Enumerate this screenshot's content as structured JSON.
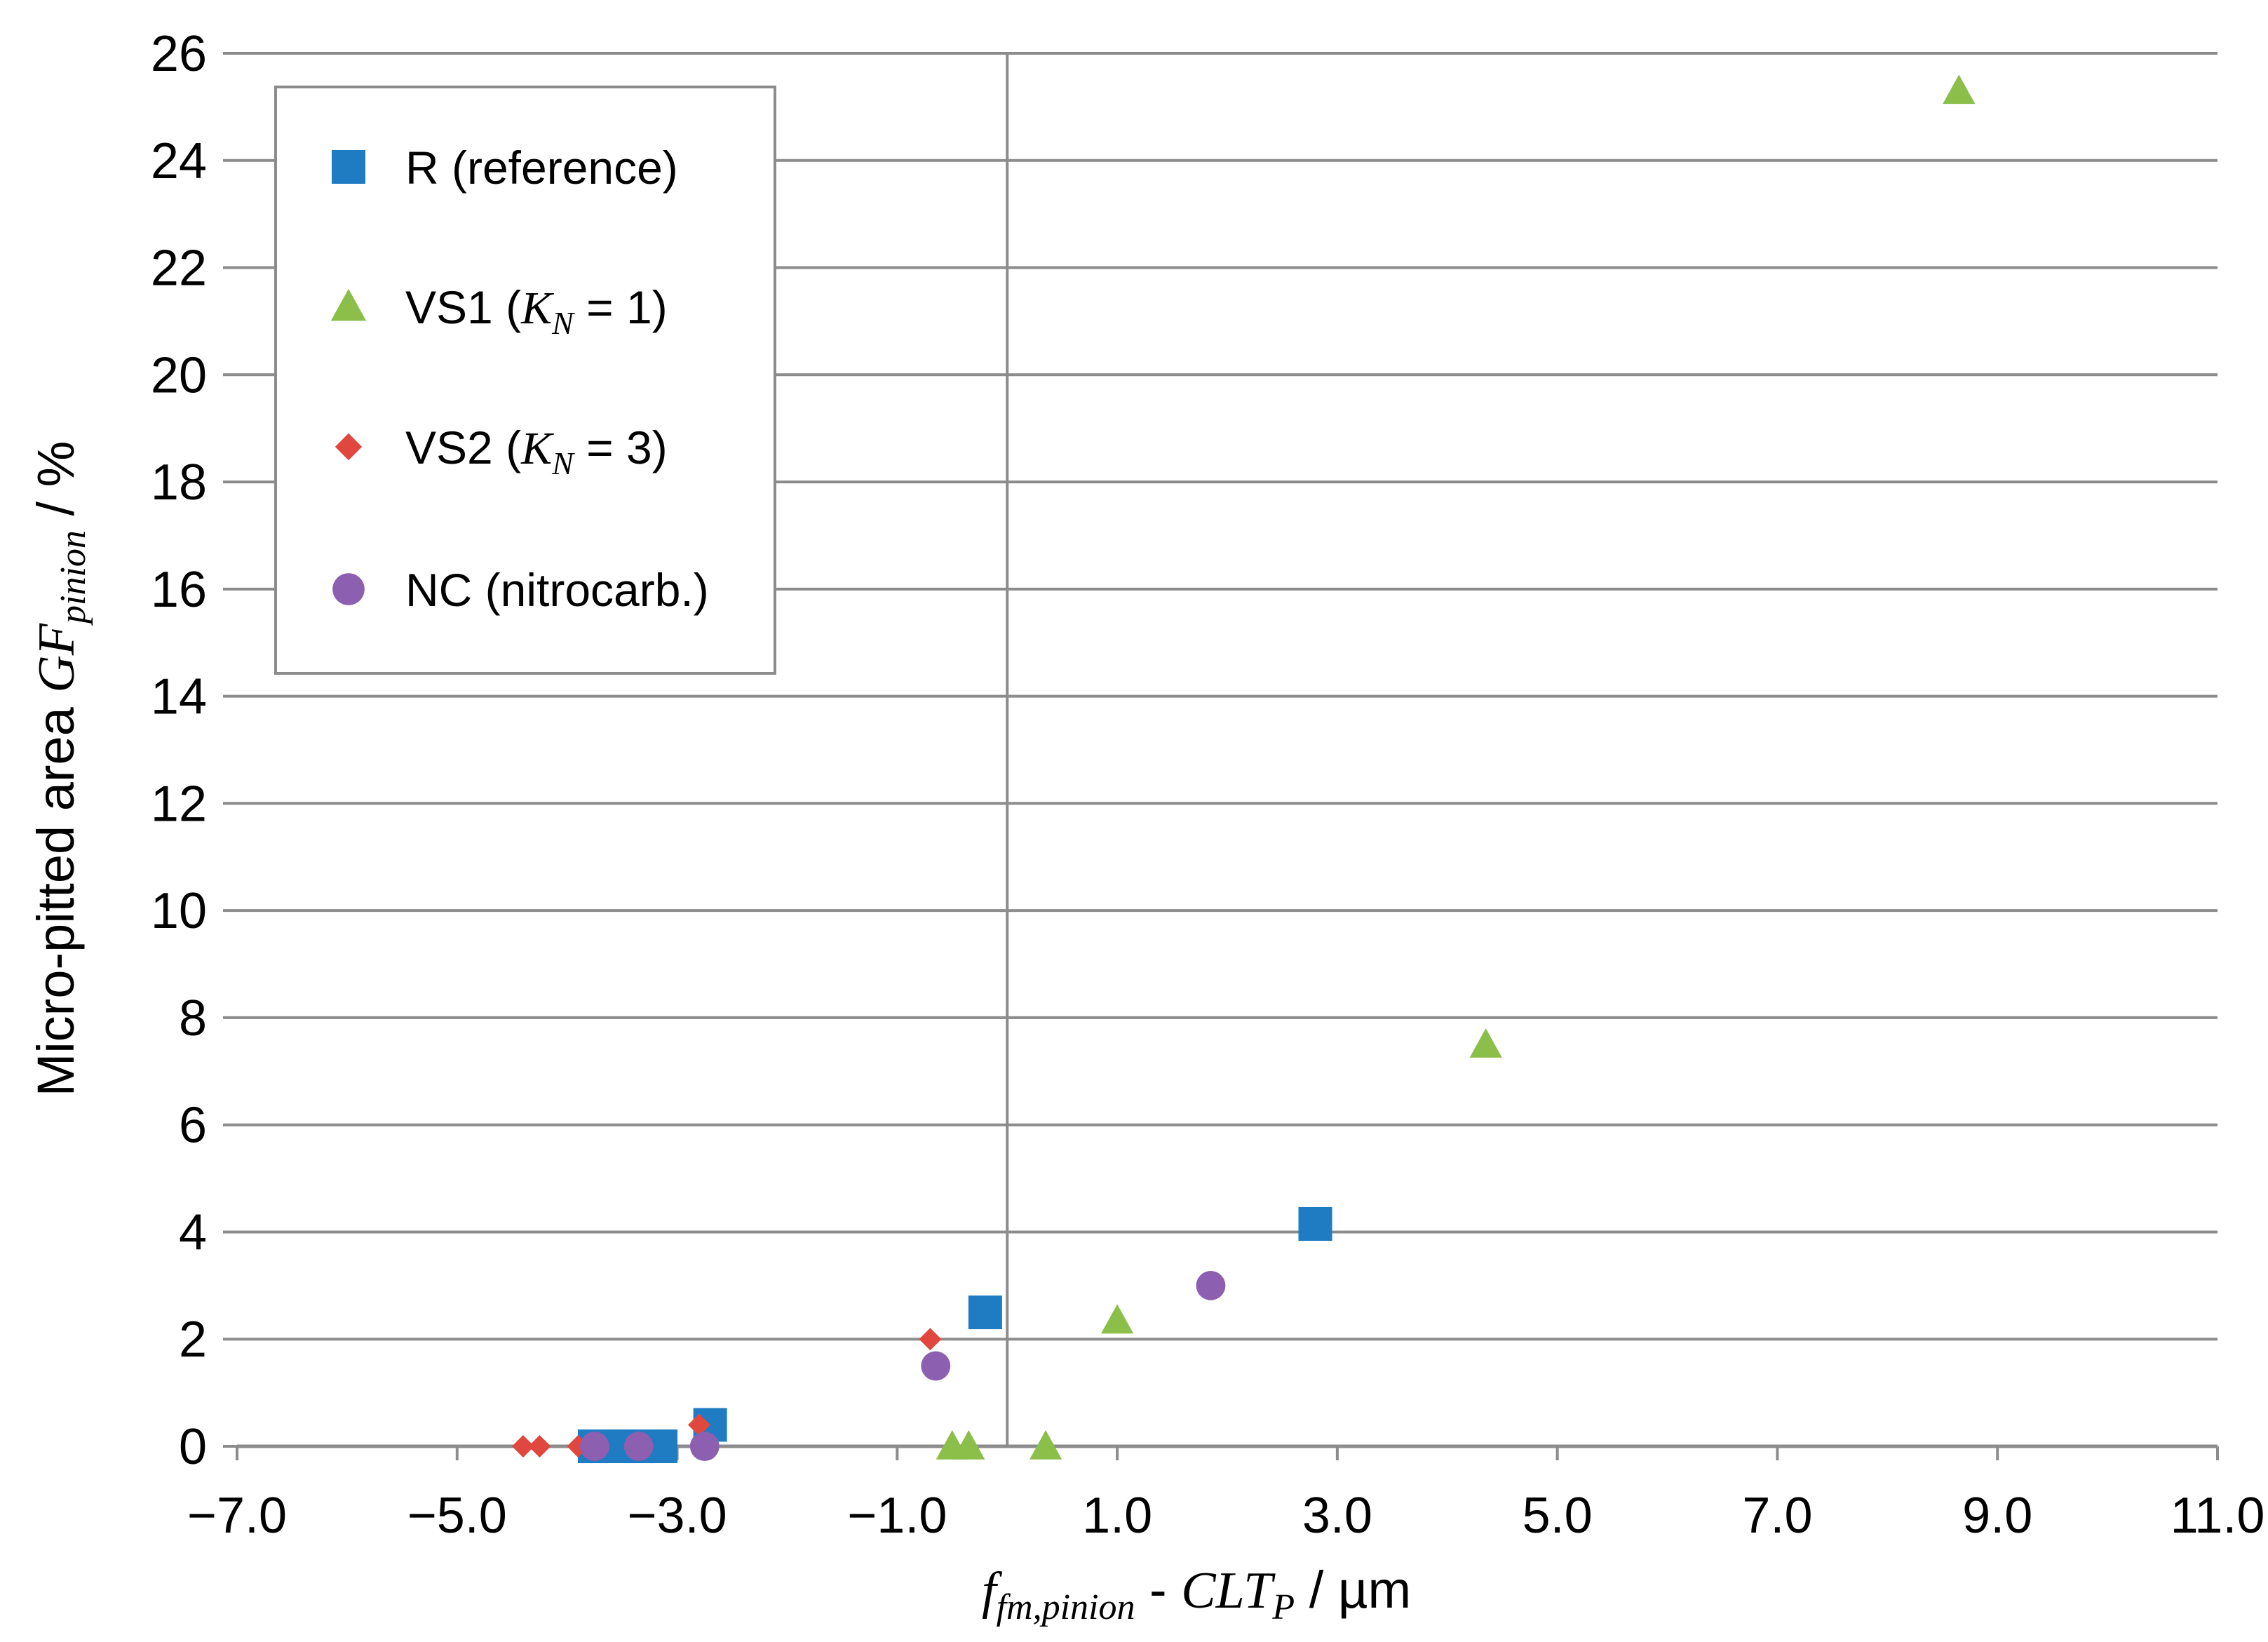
{
  "chart_data": {
    "type": "scatter",
    "title": "",
    "xlabel": {
      "parts": [
        {
          "text": "f",
          "style": "italic"
        },
        {
          "text": "fm,pinion",
          "style": "italic-sub"
        },
        {
          "text": " - ",
          "style": "normal"
        },
        {
          "text": "CLT",
          "style": "italic"
        },
        {
          "text": "P",
          "style": "italic-sub"
        },
        {
          "text": " / µm",
          "style": "normal"
        }
      ]
    },
    "ylabel": {
      "parts": [
        {
          "text": "Micro-pitted area ",
          "style": "normal"
        },
        {
          "text": "GF",
          "style": "italic"
        },
        {
          "text": "pinion",
          "style": "italic-sub"
        },
        {
          "text": " / %",
          "style": "normal"
        }
      ]
    },
    "xlim": [
      -7.0,
      11.0
    ],
    "ylim": [
      0,
      26
    ],
    "xticks": [
      "−7.0",
      "−5.0",
      "−3.0",
      "−1.0",
      "1.0",
      "3.0",
      "5.0",
      "7.0",
      "9.0",
      "11.0"
    ],
    "xtick_values": [
      -7,
      -5,
      -3,
      -1,
      1,
      3,
      5,
      7,
      9,
      11
    ],
    "yticks": [
      "0",
      "2",
      "4",
      "6",
      "8",
      "10",
      "12",
      "14",
      "16",
      "18",
      "20",
      "22",
      "24",
      "26"
    ],
    "ytick_values": [
      0,
      2,
      4,
      6,
      8,
      10,
      12,
      14,
      16,
      18,
      20,
      22,
      24,
      26
    ],
    "grid": "horizontal",
    "vertical_line_x": 0,
    "legend_position": "top-left",
    "series": [
      {
        "name": "R (reference)",
        "legend_parts": [
          {
            "text": "R (reference)",
            "style": "normal"
          }
        ],
        "marker": "square",
        "color": "#1f7cc2",
        "points": [
          [
            -3.75,
            0.0
          ],
          [
            -3.6,
            0.0
          ],
          [
            -3.45,
            0.0
          ],
          [
            -3.15,
            0.0
          ],
          [
            -2.7,
            0.4
          ],
          [
            -0.2,
            2.5
          ],
          [
            2.8,
            4.15
          ]
        ]
      },
      {
        "name": "VS1 (K_N = 1)",
        "legend_parts": [
          {
            "text": "VS1 (",
            "style": "normal"
          },
          {
            "text": "K",
            "style": "italic"
          },
          {
            "text": "N",
            "style": "italic-sub"
          },
          {
            "text": " = 1)",
            "style": "normal"
          }
        ],
        "marker": "triangle",
        "color": "#8cbf4a",
        "points": [
          [
            -0.5,
            0.0
          ],
          [
            -0.35,
            0.0
          ],
          [
            0.35,
            0.0
          ],
          [
            1.0,
            2.35
          ],
          [
            4.35,
            7.5
          ],
          [
            8.65,
            25.3
          ]
        ]
      },
      {
        "name": "VS2 (K_N = 3)",
        "legend_parts": [
          {
            "text": "VS2 (",
            "style": "normal"
          },
          {
            "text": "K",
            "style": "italic"
          },
          {
            "text": "N",
            "style": "italic-sub"
          },
          {
            "text": " = 3)",
            "style": "normal"
          }
        ],
        "marker": "diamond",
        "color": "#e0473e",
        "points": [
          [
            -4.4,
            0.0
          ],
          [
            -4.25,
            0.0
          ],
          [
            -3.9,
            0.0
          ],
          [
            -2.8,
            0.4
          ],
          [
            -0.7,
            2.0
          ]
        ]
      },
      {
        "name": "NC (nitrocarb.)",
        "legend_parts": [
          {
            "text": "NC (nitrocarb.)",
            "style": "normal"
          }
        ],
        "marker": "circle",
        "color": "#8c5fb0",
        "points": [
          [
            -3.75,
            0.0
          ],
          [
            -3.35,
            0.0
          ],
          [
            -2.75,
            0.0
          ],
          [
            -0.65,
            1.5
          ],
          [
            1.85,
            3.0
          ]
        ]
      }
    ]
  }
}
